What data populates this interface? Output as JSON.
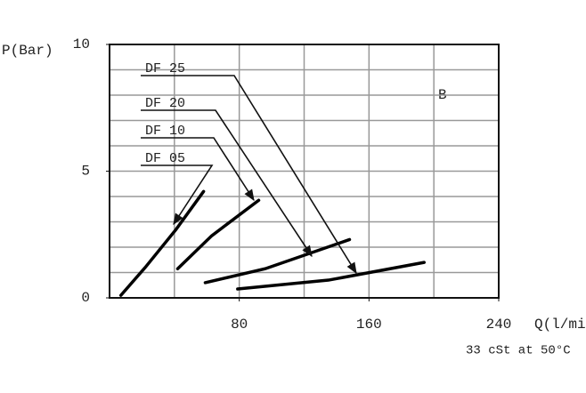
{
  "chart_data": {
    "type": "line",
    "y_label": "P(Bar)",
    "x_label": "Q(l/min)",
    "note": "33 cSt at 50°C",
    "annotation": "B",
    "xlim": [
      0,
      240
    ],
    "ylim": [
      0,
      10
    ],
    "xticks": [
      80,
      160,
      240
    ],
    "yticks": [
      0,
      5,
      10
    ],
    "xgrid": [
      40,
      80,
      120,
      160,
      200
    ],
    "ygrid": [
      1,
      2,
      3,
      4,
      5,
      6,
      7,
      8,
      9
    ],
    "series": [
      {
        "name": "DF 05",
        "color": "#000000",
        "x": [
          7,
          22,
          41,
          58
        ],
        "values": [
          0.1,
          1.2,
          2.7,
          4.2
        ]
      },
      {
        "name": "DF 10",
        "color": "#000000",
        "x": [
          42,
          63,
          92
        ],
        "values": [
          1.15,
          2.45,
          3.85
        ]
      },
      {
        "name": "DF 20",
        "color": "#000000",
        "x": [
          59,
          96,
          148
        ],
        "values": [
          0.6,
          1.15,
          2.3
        ]
      },
      {
        "name": "DF 25",
        "color": "#000000",
        "x": [
          79,
          135,
          194
        ],
        "values": [
          0.35,
          0.7,
          1.4
        ]
      }
    ]
  }
}
